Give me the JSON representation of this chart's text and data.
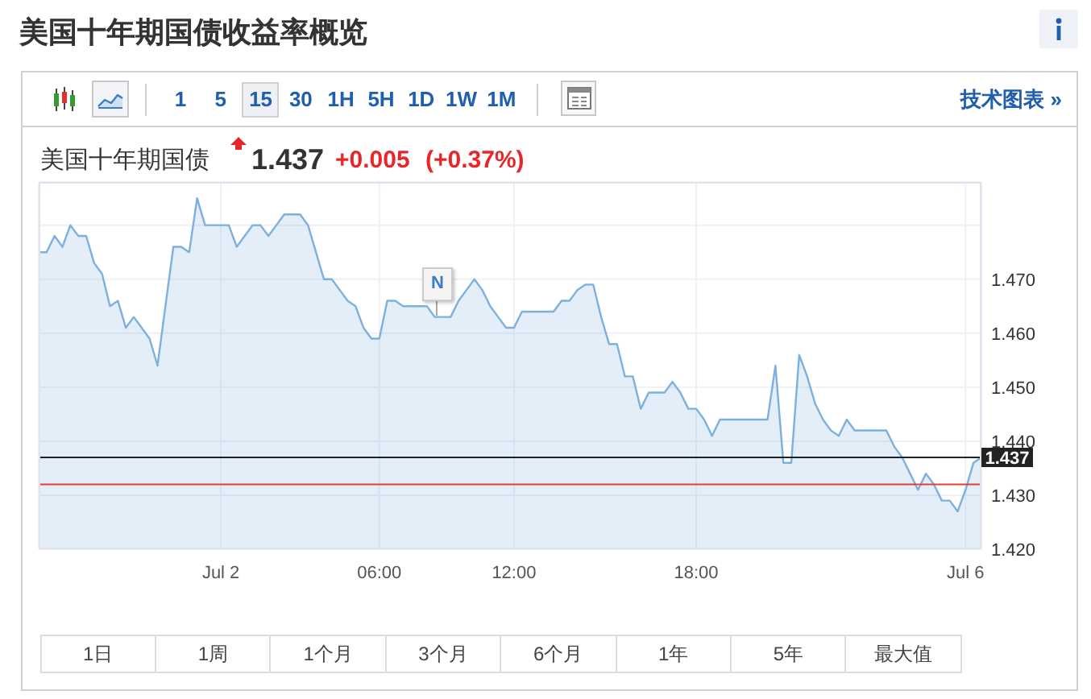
{
  "chart_data": {
    "type": "area",
    "title": "美国十年期国债收益率概览",
    "subtitle": "美国十年期国债",
    "categories": [
      null,
      null,
      null,
      null,
      null,
      null,
      null,
      null,
      null,
      null,
      null,
      null,
      null,
      null,
      null,
      null,
      null,
      null,
      null,
      null,
      null,
      null,
      null,
      "Jul 2",
      null,
      null,
      null,
      null,
      null,
      null,
      null,
      null,
      null,
      null,
      null,
      null,
      null,
      null,
      null,
      null,
      null,
      null,
      null,
      "06:00",
      null,
      null,
      null,
      null,
      null,
      null,
      null,
      null,
      null,
      null,
      null,
      null,
      null,
      null,
      null,
      null,
      "12:00",
      null,
      null,
      null,
      null,
      null,
      null,
      null,
      null,
      null,
      null,
      null,
      null,
      null,
      null,
      null,
      null,
      null,
      null,
      null,
      null,
      null,
      null,
      "18:00",
      null,
      null,
      null,
      null,
      null,
      null,
      null,
      null,
      null,
      null,
      null,
      null,
      null,
      null,
      null,
      null,
      null,
      null,
      null,
      null,
      null,
      null,
      null,
      null,
      null,
      null,
      null,
      null,
      null,
      null,
      null,
      null,
      null,
      "Jul 6",
      null,
      null
    ],
    "values": [
      1.475,
      1.475,
      1.478,
      1.476,
      1.48,
      1.478,
      1.478,
      1.473,
      1.471,
      1.465,
      1.466,
      1.461,
      1.463,
      1.461,
      1.459,
      1.454,
      1.465,
      1.476,
      1.476,
      1.475,
      1.485,
      1.48,
      1.48,
      1.48,
      1.48,
      1.476,
      1.478,
      1.48,
      1.48,
      1.478,
      1.48,
      1.482,
      1.482,
      1.482,
      1.48,
      1.475,
      1.47,
      1.47,
      1.468,
      1.466,
      1.465,
      1.461,
      1.459,
      1.459,
      1.466,
      1.466,
      1.465,
      1.465,
      1.465,
      1.465,
      1.463,
      1.463,
      1.463,
      1.466,
      1.468,
      1.47,
      1.468,
      1.465,
      1.463,
      1.461,
      1.461,
      1.464,
      1.464,
      1.464,
      1.464,
      1.464,
      1.466,
      1.466,
      1.468,
      1.469,
      1.469,
      1.463,
      1.458,
      1.458,
      1.452,
      1.452,
      1.446,
      1.449,
      1.449,
      1.449,
      1.451,
      1.449,
      1.446,
      1.446,
      1.444,
      1.441,
      1.444,
      1.444,
      1.444,
      1.444,
      1.444,
      1.444,
      1.444,
      1.454,
      1.436,
      1.436,
      1.456,
      1.452,
      1.447,
      1.444,
      1.442,
      1.441,
      1.444,
      1.442,
      1.442,
      1.442,
      1.442,
      1.442,
      1.439,
      1.437,
      1.434,
      1.431,
      1.434,
      1.432,
      1.429,
      1.429,
      1.427,
      1.431,
      1.436,
      1.437
    ],
    "color": "#7eb0de",
    "ylim": [
      1.42,
      1.488
    ],
    "yticks": [
      {
        "value": 1.42,
        "label": "1.420"
      },
      {
        "value": 1.43,
        "label": "1.430"
      },
      {
        "value": 1.44,
        "label": "1.440"
      },
      {
        "value": 1.45,
        "label": "1.450"
      },
      {
        "value": 1.46,
        "label": "1.460"
      },
      {
        "value": 1.47,
        "label": "1.470"
      },
      {
        "value": 1.48,
        "label": null
      }
    ],
    "grid": true,
    "ref_lines": [
      {
        "axis": "y",
        "value": 1.437,
        "label": "1.437",
        "color": "#222222"
      },
      {
        "axis": "y",
        "value": 1.432,
        "color": "#e0403c"
      }
    ],
    "annotations": [
      "1",
      "5",
      "15",
      "30",
      "1H",
      "5H",
      "1D",
      "1W",
      "1M",
      "技术图表 »",
      "1.437",
      "+0.005",
      "(+0.37%)",
      "N",
      "1日",
      "1周",
      "1个月",
      "3个月",
      "6个月",
      "1年",
      "5年",
      "最大值"
    ]
  }
}
